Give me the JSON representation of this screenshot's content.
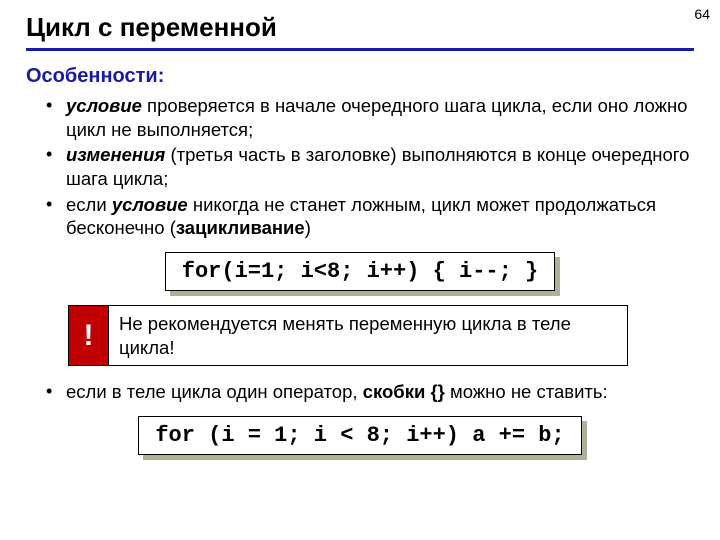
{
  "page_number": "64",
  "title": "Цикл с переменной",
  "section_label": "Особенности:",
  "section_label_color": "#1a1aa6",
  "hr_color": "#1a1aa6",
  "bullets_a": [
    {
      "pre": "",
      "bold_italic": "условие",
      "post": " проверяется в начале очередного шага цикла, если оно ложно цикл не выполняется;"
    },
    {
      "pre": "",
      "bold_italic": "изменения",
      "post": " (третья часть в заголовке) выполняются в конце очередного шага цикла;"
    },
    {
      "pre": "если ",
      "bold_italic": "условие",
      "post": " никогда не станет ложным, цикл может продолжаться бесконечно (",
      "tail_bold": "зацикливание",
      "tail_post": ")"
    }
  ],
  "code1": "for(i=1; i<8; i++) { i--; }",
  "code1_shadow_color": "#b0b098",
  "warn_badge": "!",
  "warn_badge_bg": "#c00000",
  "warn_text": "Не рекомендуется менять переменную цикла в теле цикла!",
  "bullets_b": [
    {
      "pre": "если в теле цикла один оператор, ",
      "bold": "скобки {}",
      "post": " можно не ставить:"
    }
  ],
  "code2": "for (i = 1; i < 8; i++) a += b;",
  "code2_shadow_color": "#b0b098"
}
